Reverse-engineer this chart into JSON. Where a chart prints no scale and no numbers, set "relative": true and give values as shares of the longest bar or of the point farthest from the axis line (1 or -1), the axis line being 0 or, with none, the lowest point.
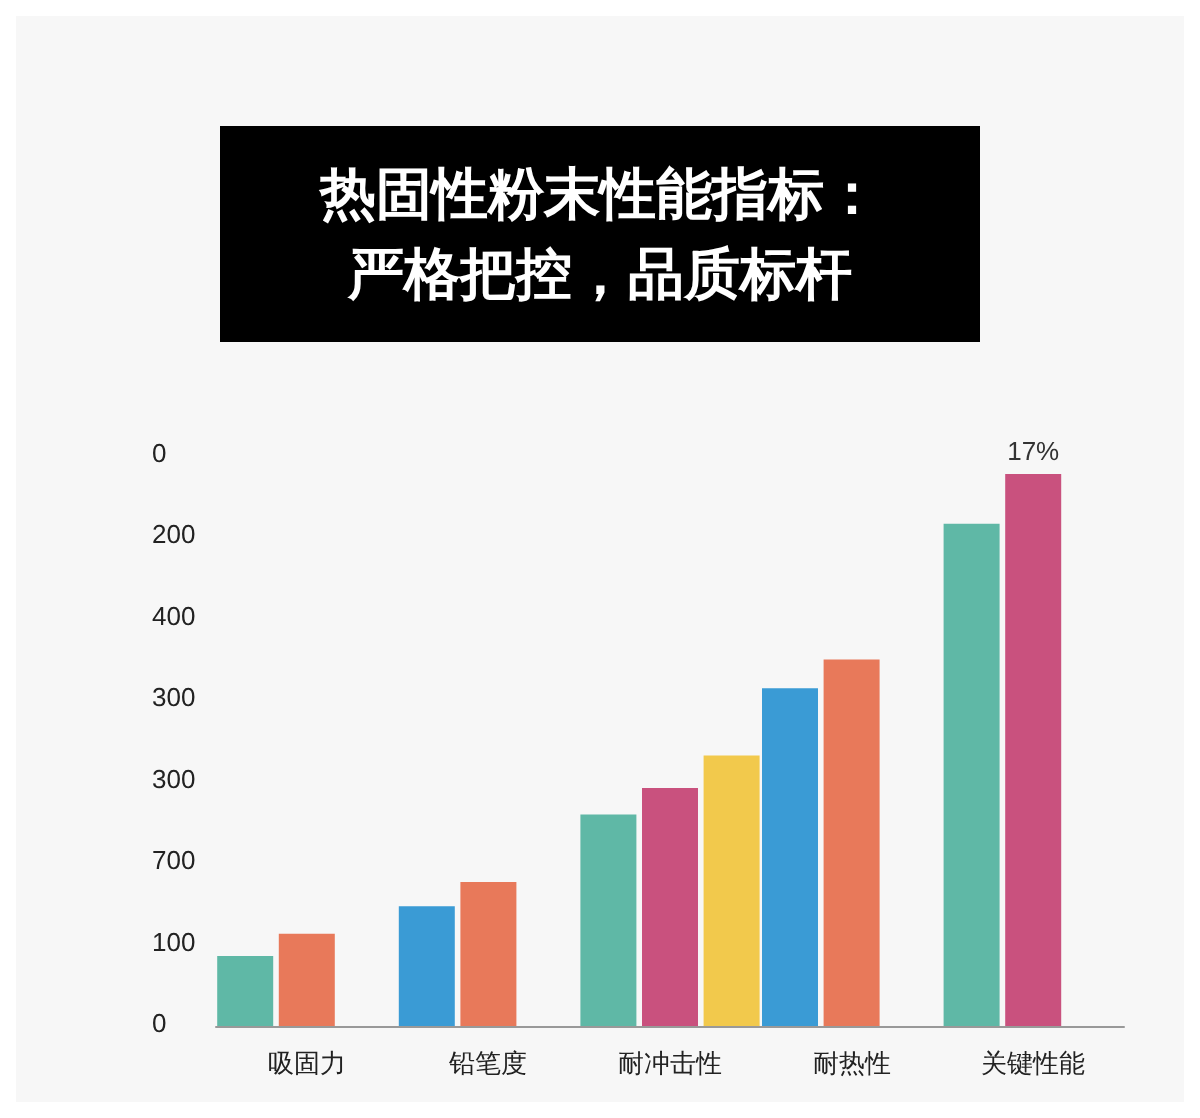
{
  "chart_data": {
    "type": "bar",
    "title": "热固性粉末性能指标：严格把控，品质标杆",
    "categories": [
      "吸固力",
      "铅笔度",
      "耐冲击性",
      "耐热性",
      "关键性能"
    ],
    "relative": true,
    "series": [
      {
        "colors": [
          "#5fb8a6",
          "#3a9bd5",
          "#5fb8a6",
          "#3a9bd5",
          "#5fb8a6"
        ],
        "values": [
          0.127,
          0.217,
          0.383,
          0.612,
          0.91
        ]
      },
      {
        "colors": [
          "#e8795a",
          "#e8795a",
          "#c9517e",
          "#e8795a",
          "#c9517e"
        ],
        "values": [
          0.167,
          0.261,
          0.431,
          0.664,
          1
        ]
      },
      {
        "colors": [
          null,
          null,
          "#f2c94c",
          null,
          null
        ],
        "values": [
          null,
          null,
          0.49,
          null,
          null
        ]
      }
    ],
    "annotations": [
      "0",
      "200",
      "400",
      "300",
      "300",
      "700",
      "100",
      "0",
      {
        "text": "17%",
        "x": "关键性能",
        "y": 1
      }
    ]
  }
}
